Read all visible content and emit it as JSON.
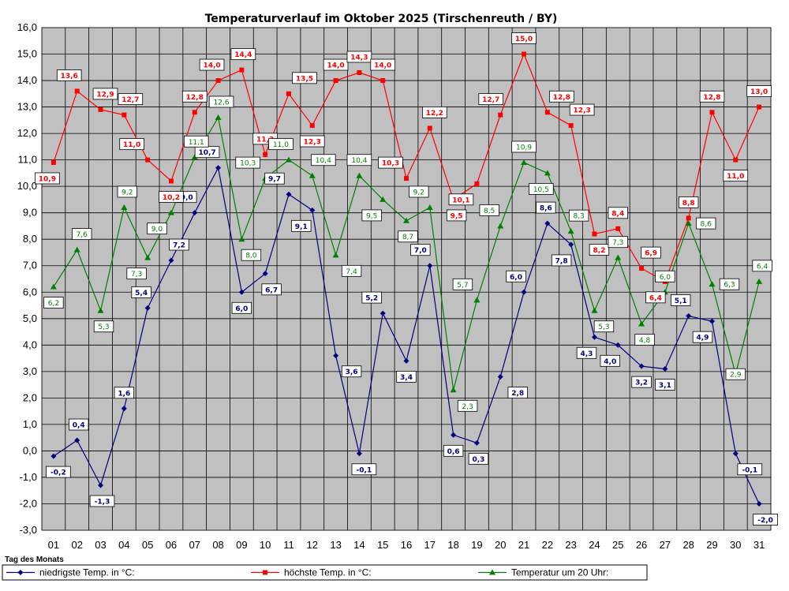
{
  "chart_data": {
    "type": "line",
    "title": "Temperaturverlauf im Oktober 2025 (Tirschenreuth / BY)",
    "xlabel": "Tag des Monats",
    "ylabel": "",
    "ylim": [
      -3,
      16
    ],
    "y_ticks": [
      "-3,0",
      "-2,0",
      "-1,0",
      "0,0",
      "1,0",
      "2,0",
      "3,0",
      "4,0",
      "5,0",
      "6,0",
      "7,0",
      "8,0",
      "9,0",
      "10,0",
      "11,0",
      "12,0",
      "13,0",
      "14,0",
      "15,0",
      "16,0"
    ],
    "categories": [
      "01",
      "02",
      "03",
      "04",
      "05",
      "06",
      "07",
      "08",
      "09",
      "10",
      "11",
      "12",
      "13",
      "14",
      "15",
      "16",
      "17",
      "18",
      "19",
      "20",
      "21",
      "22",
      "23",
      "24",
      "25",
      "26",
      "27",
      "28",
      "29",
      "30",
      "31"
    ],
    "grid": true,
    "legend_position": "bottom",
    "series": [
      {
        "name": "niedrigste Temp. in °C:",
        "color": "#000080",
        "marker": "diamond",
        "values": [
          -0.2,
          0.4,
          -1.3,
          1.6,
          5.4,
          7.2,
          9.0,
          10.7,
          6.0,
          6.7,
          9.7,
          9.1,
          3.6,
          -0.1,
          5.2,
          3.4,
          7.0,
          0.6,
          0.3,
          2.8,
          6.0,
          8.6,
          7.8,
          4.3,
          4.0,
          3.2,
          3.1,
          5.1,
          4.9,
          -0.1,
          -2.0
        ],
        "labels": [
          "-0,2",
          "0,4",
          "-1,3",
          "1,6",
          "5,4",
          "7,2",
          "9,0",
          "10,7",
          "6,0",
          "6,7",
          "9,7",
          "9,1",
          "3,6",
          "-0,1",
          "5,2",
          "3,4",
          "7,0",
          "0,6",
          "0,3",
          "2,8",
          "6,0",
          "8,6",
          "7,8",
          "4,3",
          "4,0",
          "3,2",
          "3,1",
          "5,1",
          "4,9",
          "-0,1",
          "-2,0"
        ]
      },
      {
        "name": "höchste Temp. in °C:",
        "color": "#ff0000",
        "marker": "square",
        "values": [
          10.9,
          13.6,
          12.9,
          12.7,
          11.0,
          10.2,
          12.8,
          14.0,
          14.4,
          11.2,
          13.5,
          12.3,
          14.0,
          14.3,
          14.0,
          10.3,
          12.2,
          9.5,
          10.1,
          12.7,
          15.0,
          12.8,
          12.3,
          8.2,
          8.4,
          6.9,
          6.4,
          8.8,
          12.8,
          11.0,
          13.0
        ],
        "labels": [
          "10,9",
          "13,6",
          "12,9",
          "12,7",
          "11,0",
          "10,2",
          "12,8",
          "14,0",
          "14,4",
          "11,2",
          "13,5",
          "12,3",
          "14,0",
          "14,3",
          "14,0",
          "10,3",
          "12,2",
          "9,5",
          "10,1",
          "12,7",
          "15,0",
          "12,8",
          "12,3",
          "8,2",
          "8,4",
          "6,9",
          "6,4",
          "8,8",
          "12,8",
          "11,0",
          "13,0"
        ]
      },
      {
        "name": "Temperatur um 20 Uhr:",
        "color": "#008000",
        "marker": "triangle",
        "values": [
          6.2,
          7.6,
          5.3,
          9.2,
          7.3,
          9.0,
          11.1,
          12.6,
          8.0,
          10.3,
          11.0,
          10.4,
          7.4,
          10.4,
          9.5,
          8.7,
          9.2,
          2.3,
          5.7,
          8.5,
          10.9,
          10.5,
          8.3,
          5.3,
          7.3,
          4.8,
          6.0,
          8.6,
          6.3,
          2.9,
          6.4
        ],
        "labels": [
          "6,2",
          "7,6",
          "5,3",
          "9,2",
          "7,3",
          "9,0",
          "11,1",
          "12,6",
          "8,0",
          "10,3",
          "11,0",
          "10,4",
          "7,4",
          "10,4",
          "9,5",
          "8,7",
          "9,2",
          "2,3",
          "5,7",
          "8,5",
          "10,9",
          "10,5",
          "8,3",
          "5,3",
          "7,3",
          "4,8",
          "6,0",
          "8,6",
          "6,3",
          "2,9",
          "6,4"
        ]
      }
    ]
  }
}
